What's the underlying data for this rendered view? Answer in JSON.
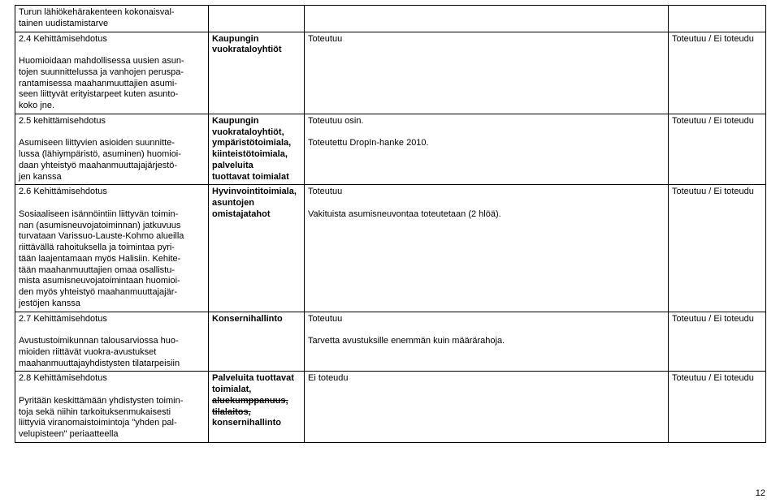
{
  "rows": [
    {
      "desc_head": "",
      "desc_body": "Turun lähiökehärakenteen kokonaisval-\ntainen uudistamistarve",
      "col1_plain": "",
      "col1_strike": "",
      "col2": "",
      "col3": ""
    },
    {
      "desc_head": "2.4 Kehittämisehdotus",
      "desc_body": "Huomioidaan mahdollisessa uusien asun-\ntojen suunnittelussa ja vanhojen peruspa-\nrantamisessa maahanmuuttajien asumi-\nseen liittyvät erityistarpeet kuten asunto-\nkoko jne.",
      "col1_plain": "Kaupungin\nvuokrataloyhtiöt",
      "col1_strike": "",
      "col2": "Toteutuu",
      "col3": "Toteutuu / Ei toteudu"
    },
    {
      "desc_head": "2.5 kehittämisehdotus",
      "desc_body": "Asumiseen liittyvien asioiden suunnitte-\nlussa (lähiympäristö, asuminen) huomioi-\ndaan yhteistyö maahanmuuttajajärjestö-\njen kanssa",
      "col1_plain": "Kaupungin\nvuokrataloyhtiöt,\nympäristötoimiala,\nkiinteistötoimiala,\npalveluita\ntuottavat toimialat",
      "col1_strike": "",
      "col2": "Toteutuu osin.\n\nToteutettu DropIn-hanke 2010.",
      "col3": "Toteutuu / Ei toteudu"
    },
    {
      "desc_head": "2.6 Kehittämisehdotus",
      "desc_body": "Sosiaaliseen isännöintiin liittyvän toimin-\nnan (asumisneuvojatoiminnan) jatkuvuus\nturvataan Varissuo-Lauste-Kohmo alueilla\nriittävällä rahoituksella ja toimintaa pyri-\ntään laajentamaan myös Halisiin. Kehite-\ntään maahanmuuttajien omaa osallistu-\nmista asumisneuvojatoimintaan huomioi-\nden myös yhteistyö maahanmuuttajajär-\njestöjen kanssa",
      "col1_plain": "Hyvinvointitoimiala,\nasuntojen\nomistajatahot",
      "col1_strike": "",
      "col2": "Toteutuu\n\nVakituista asumisneuvontaa toteutetaan (2 hlöä).",
      "col3": "Toteutuu / Ei toteudu"
    },
    {
      "desc_head": "2.7 Kehittämisehdotus",
      "desc_body": "Avustustoimikunnan talousarviossa huo-\nmioiden riittävät vuokra-avustukset\nmaahanmuuttajayhdistysten tilatarpeisiin",
      "col1_plain": "Konsernihallinto",
      "col1_strike": "",
      "col2": "Toteutuu\n\nTarvetta avustuksille enemmän kuin määrärahoja.",
      "col3": "Toteutuu / Ei toteudu"
    },
    {
      "desc_head": "2.8 Kehittämisehdotus",
      "desc_body": "Pyritään keskittämään yhdistysten toimin-\ntoja sekä niihin tarkoituksenmukaisesti\nliittyviä viranomaistoimintoja \"yhden pal-\nvelupisteen\" periaatteella",
      "col1_plain": "Palveluita tuottavat\ntoimialat,",
      "col1_strike": "aluekumppanuus,\ntilalaitos,",
      "col1_plain_after": "konsernihallinto",
      "col2": "Ei toteudu",
      "col3": "Toteutuu / Ei toteudu"
    }
  ],
  "pagenum": "12"
}
